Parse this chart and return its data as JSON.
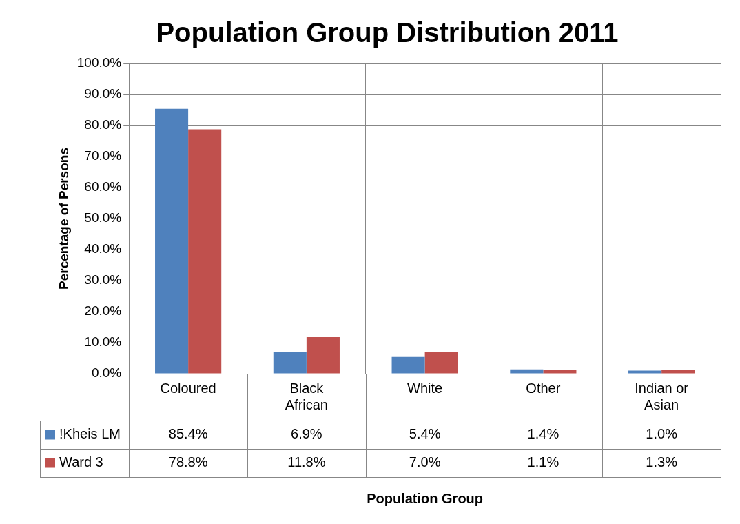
{
  "chart_data": {
    "type": "bar",
    "title": "Population Group Distribution 2011",
    "annotations": [
      "Population Group"
    ],
    "ylabel": "Percentage of Persons",
    "categories": [
      "Coloured",
      "Black African",
      "White",
      "Other",
      "Indian or Asian"
    ],
    "series": [
      {
        "name": "!Kheis LM",
        "color": "#4f81bd",
        "values": [
          85.4,
          6.9,
          5.4,
          1.4,
          1.0
        ],
        "value_labels": [
          "85.4%",
          "6.9%",
          "5.4%",
          "1.4%",
          "1.0%"
        ]
      },
      {
        "name": "Ward 3",
        "color": "#c0504d",
        "values": [
          78.8,
          11.8,
          7.0,
          1.1,
          1.3
        ],
        "value_labels": [
          "78.8%",
          "11.8%",
          "7.0%",
          "1.1%",
          "1.3%"
        ]
      }
    ],
    "ylim": [
      0,
      100
    ],
    "yticks": [
      {
        "value": 0,
        "label": "0.0%"
      },
      {
        "value": 10,
        "label": "10.0%"
      },
      {
        "value": 20,
        "label": "20.0%"
      },
      {
        "value": 30,
        "label": "30.0%"
      },
      {
        "value": 40,
        "label": "40.0%"
      },
      {
        "value": 50,
        "label": "50.0%"
      },
      {
        "value": 60,
        "label": "60.0%"
      },
      {
        "value": 70,
        "label": "70.0%"
      },
      {
        "value": 80,
        "label": "80.0%"
      },
      {
        "value": 90,
        "label": "90.0%"
      },
      {
        "value": 100,
        "label": "100.0%"
      }
    ],
    "grid": true,
    "legend": "bottom"
  }
}
